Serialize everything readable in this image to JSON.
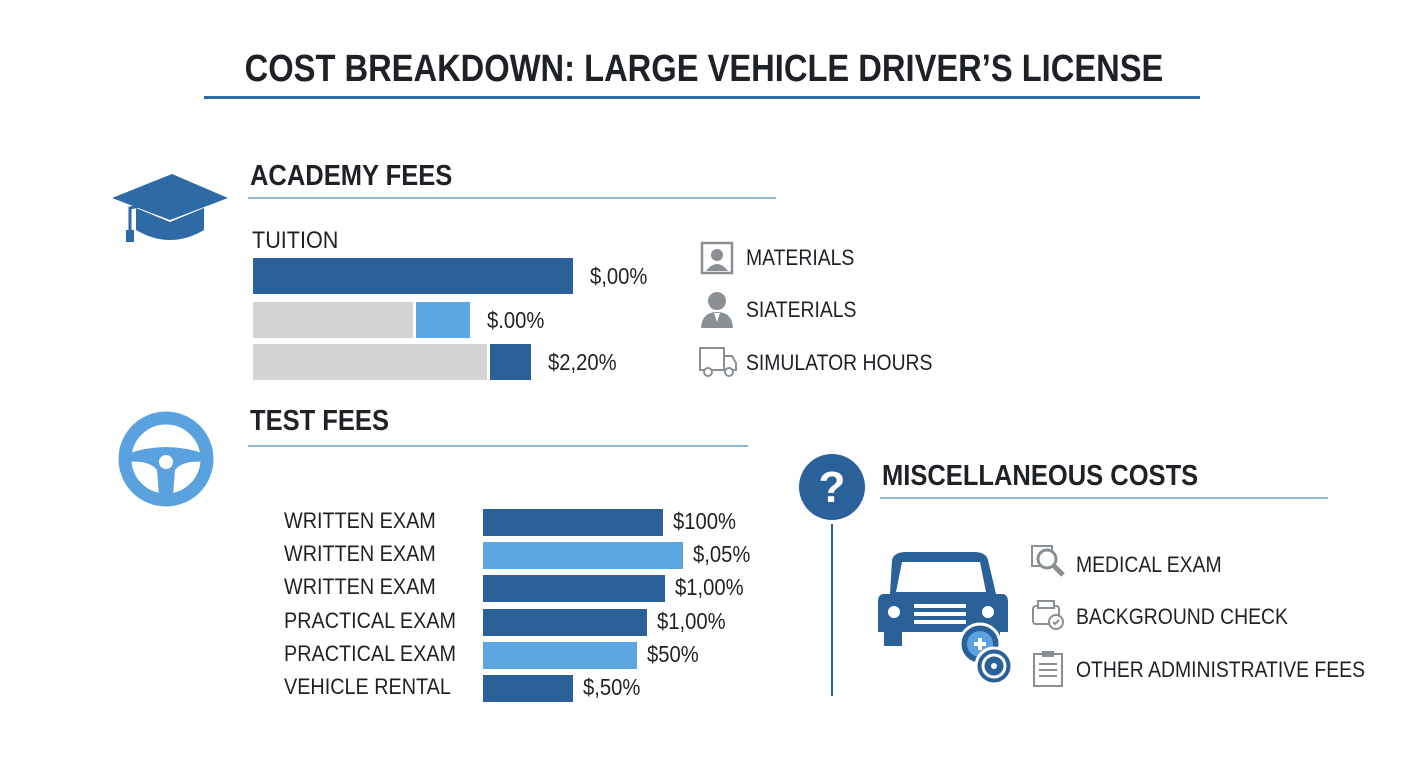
{
  "title": "COST BREAKDOWN: LARGE VEHICLE DRIVER’S LICENSE",
  "colors": {
    "dark_blue": "#2a6199",
    "light_blue": "#5aa7e2",
    "gray": "#d2d4d6",
    "rule": "#2f6da4"
  },
  "academy": {
    "heading": "ACADEMY FEES",
    "icon": "graduation-cap-icon",
    "sub_label": "TUITION",
    "items": [
      {
        "icon": "id-card-icon",
        "label": "MATERIALS"
      },
      {
        "icon": "person-icon",
        "label": "SIATERIALS"
      },
      {
        "icon": "truck-icon",
        "label": "SIMULATOR HOURS"
      }
    ]
  },
  "test": {
    "heading": "TEST FEES",
    "icon": "steering-wheel-icon"
  },
  "misc": {
    "heading": "MISCELLANEOUS COSTS",
    "icon": "question-icon",
    "illustration": "vehicle-icon",
    "items": [
      {
        "icon": "magnifier-icon",
        "label": "MEDICAL EXAM"
      },
      {
        "icon": "car-check-icon",
        "label": "BACKGROUND CHECK"
      },
      {
        "icon": "clipboard-icon",
        "label": "OTHER ADMINISTRATIVE FEES"
      }
    ]
  },
  "chart_data": [
    {
      "type": "bar",
      "orientation": "horizontal",
      "title": "ACADEMY FEES",
      "subtitle": "TUITION",
      "stacked": true,
      "rows": [
        {
          "label": "",
          "value_label": "$,00%",
          "segments": [
            {
              "color": "dark",
              "value": 100
            }
          ]
        },
        {
          "label": "",
          "value_label": "$.00%",
          "segments": [
            {
              "color": "gray",
              "value": 50
            },
            {
              "color": "light",
              "value": 17
            }
          ]
        },
        {
          "label": "",
          "value_label": "$2,20%",
          "segments": [
            {
              "color": "gray",
              "value": 73
            },
            {
              "color": "dark",
              "value": 13
            }
          ]
        }
      ],
      "xlim": [
        0,
        100
      ]
    },
    {
      "type": "bar",
      "orientation": "horizontal",
      "title": "TEST FEES",
      "categories": [
        "WRITTEN EXAM",
        "WRITTEN EXAM",
        "WRITTEN EXAM",
        "PRACTICAL EXAM",
        "PRACTICAL EXAM",
        "VEHICLE RENTAL"
      ],
      "values": [
        90,
        100,
        91,
        82,
        77,
        45
      ],
      "value_labels": [
        "$100%",
        "$,05%",
        "$1,00%",
        "$1,00%",
        "$50%",
        "$,50%"
      ],
      "colors": [
        "dark",
        "light",
        "dark",
        "dark",
        "light",
        "dark"
      ],
      "xlim": [
        0,
        100
      ]
    }
  ]
}
